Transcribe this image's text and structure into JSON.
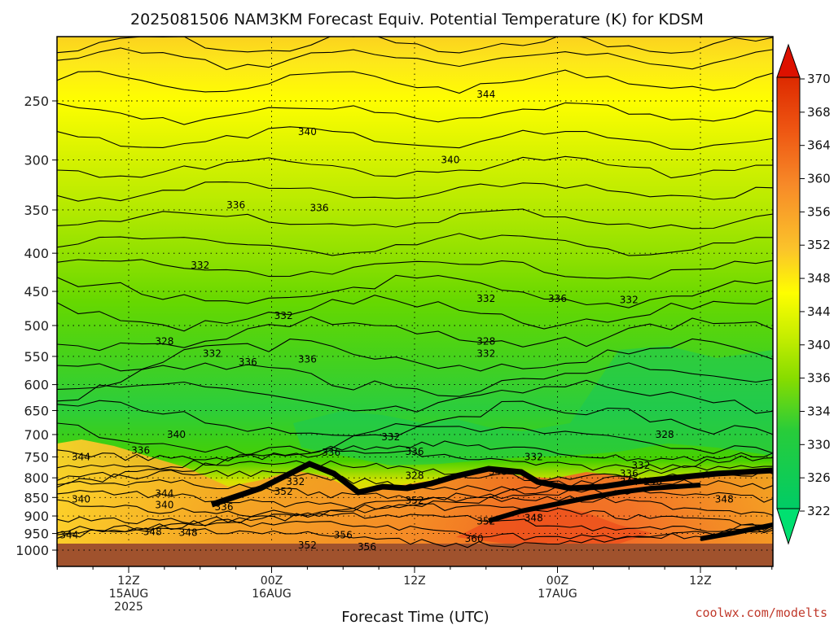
{
  "title": "2025081506 NAM3KM Forecast Equiv. Potential Temperature (K) for KDSM",
  "credit": "coolwx.com/modelts",
  "chart_data": {
    "type": "heatmap",
    "title": "2025081506 NAM3KM Forecast Equiv. Potential Temperature (K) for KDSM",
    "xlabel": "Forecast Time (UTC)",
    "ylabel": "",
    "y_scale": "log-pressure",
    "y_ticks": [
      250,
      300,
      350,
      400,
      450,
      500,
      550,
      600,
      650,
      700,
      750,
      800,
      850,
      900,
      950,
      1000
    ],
    "x_ticks": [
      {
        "lines": [
          "12Z",
          "15AUG",
          "2025"
        ]
      },
      {
        "lines": [
          "00Z",
          "16AUG"
        ]
      },
      {
        "lines": [
          "12Z"
        ]
      },
      {
        "lines": [
          "00Z",
          "17AUG"
        ]
      },
      {
        "lines": [
          "12Z"
        ]
      }
    ],
    "colorbar_ticks": [
      370,
      368,
      364,
      360,
      356,
      352,
      348,
      344,
      340,
      336,
      334,
      330,
      326,
      322
    ],
    "colorbar_colors": [
      "#e03000",
      "#ee5010",
      "#f47020",
      "#f89030",
      "#fbae30",
      "#fbc830",
      "#fbe330",
      "#fefe00",
      "#d8f400",
      "#a6e600",
      "#6fd800",
      "#30d020",
      "#00cc66"
    ],
    "contour_labels": [
      {
        "text": "344",
        "at": [
          "06Z 16AUG",
          200
        ]
      },
      {
        "text": "340",
        "at": [
          "06Z 15AUG",
          230
        ]
      },
      {
        "text": "344",
        "at": [
          "18Z 16AUG",
          245
        ]
      },
      {
        "text": "340",
        "at": [
          "03Z 16AUG",
          275
        ]
      },
      {
        "text": "340",
        "at": [
          "15Z 16AUG",
          300
        ]
      },
      {
        "text": "336",
        "at": [
          "21Z 15AUG",
          345
        ]
      },
      {
        "text": "336",
        "at": [
          "04Z 16AUG",
          348
        ]
      },
      {
        "text": "332",
        "at": [
          "18Z 15AUG",
          415
        ]
      },
      {
        "text": "332",
        "at": [
          "18Z 16AUG",
          460
        ]
      },
      {
        "text": "336",
        "at": [
          "00Z 17AUG",
          460
        ]
      },
      {
        "text": "332",
        "at": [
          "06Z 17AUG",
          462
        ]
      },
      {
        "text": "332",
        "at": [
          "01Z 16AUG",
          485
        ]
      },
      {
        "text": "328",
        "at": [
          "15Z 15AUG",
          525
        ]
      },
      {
        "text": "332",
        "at": [
          "19Z 15AUG",
          545
        ]
      },
      {
        "text": "336",
        "at": [
          "22Z 15AUG",
          560
        ]
      },
      {
        "text": "336",
        "at": [
          "03Z 16AUG",
          555
        ]
      },
      {
        "text": "328",
        "at": [
          "18Z 16AUG",
          525
        ]
      },
      {
        "text": "332",
        "at": [
          "18Z 16AUG",
          545
        ]
      },
      {
        "text": "340",
        "at": [
          "16Z 15AUG",
          700
        ]
      },
      {
        "text": "336",
        "at": [
          "13Z 15AUG",
          735
        ]
      },
      {
        "text": "344",
        "at": [
          "08Z 15AUG",
          750
        ]
      },
      {
        "text": "336",
        "at": [
          "05Z 16AUG",
          740
        ]
      },
      {
        "text": "332",
        "at": [
          "10Z 16AUG",
          705
        ]
      },
      {
        "text": "336",
        "at": [
          "12Z 16AUG",
          738
        ]
      },
      {
        "text": "328",
        "at": [
          "12Z 16AUG",
          795
        ]
      },
      {
        "text": "332",
        "at": [
          "22Z 16AUG",
          750
        ]
      },
      {
        "text": "348",
        "at": [
          "19Z 16AUG",
          785
        ]
      },
      {
        "text": "328",
        "at": [
          "09Z 17AUG",
          700
        ]
      },
      {
        "text": "332",
        "at": [
          "07Z 17AUG",
          770
        ]
      },
      {
        "text": "336",
        "at": [
          "06Z 17AUG",
          790
        ]
      },
      {
        "text": "344",
        "at": [
          "06Z 17AUG",
          810
        ]
      },
      {
        "text": "340",
        "at": [
          "08Z 17AUG",
          810
        ]
      },
      {
        "text": "348",
        "at": [
          "14Z 17AUG",
          855
        ]
      },
      {
        "text": "332",
        "at": [
          "02Z 16AUG",
          810
        ]
      },
      {
        "text": "352",
        "at": [
          "01Z 16AUG",
          835
        ]
      },
      {
        "text": "352",
        "at": [
          "12Z 16AUG",
          858
        ]
      },
      {
        "text": "340",
        "at": [
          "08Z 15AUG",
          855
        ]
      },
      {
        "text": "344",
        "at": [
          "15Z 15AUG",
          840
        ]
      },
      {
        "text": "340",
        "at": [
          "15Z 15AUG",
          870
        ]
      },
      {
        "text": "336",
        "at": [
          "20Z 15AUG",
          875
        ]
      },
      {
        "text": "352",
        "at": [
          "18Z 16AUG",
          915
        ]
      },
      {
        "text": "348",
        "at": [
          "22Z 16AUG",
          905
        ]
      },
      {
        "text": "344",
        "at": [
          "07Z 15AUG",
          955
        ]
      },
      {
        "text": "348",
        "at": [
          "14Z 15AUG",
          945
        ]
      },
      {
        "text": "348",
        "at": [
          "17Z 15AUG",
          948
        ]
      },
      {
        "text": "356",
        "at": [
          "06Z 16AUG",
          955
        ]
      },
      {
        "text": "352",
        "at": [
          "03Z 16AUG",
          985
        ]
      },
      {
        "text": "356",
        "at": [
          "08Z 16AUG",
          990
        ]
      },
      {
        "text": "360",
        "at": [
          "17Z 16AUG",
          965
        ]
      }
    ]
  }
}
